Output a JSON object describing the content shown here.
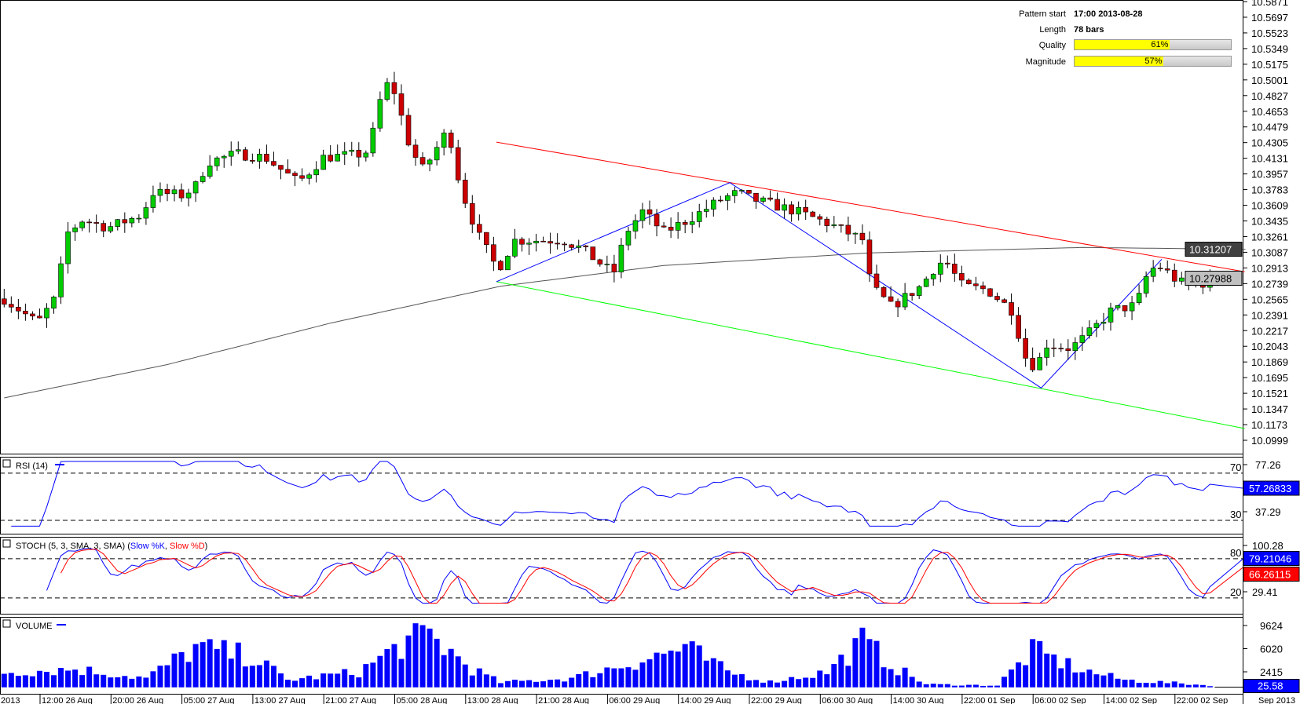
{
  "info": {
    "pattern_start_label": "Pattern start",
    "pattern_start_value": "17:00 2013-08-28",
    "length_label": "Length",
    "length_value": "78 bars",
    "quality_label": "Quality",
    "quality_value": "61%",
    "quality_pct": 61,
    "magnitude_label": "Magnitude",
    "magnitude_value": "57%",
    "magnitude_pct": 57
  },
  "colors": {
    "up": "#00cc00",
    "down": "#cc0000",
    "resistance": "#ff0000",
    "support": "#00ff00",
    "pattern": "#0000ff",
    "ma": "#555555",
    "volume": "#0000ff"
  },
  "chart_data": {
    "type": "candlestick",
    "bars": 175,
    "price_ticks": [
      "10.5871",
      "10.5697",
      "10.5523",
      "10.5349",
      "10.5175",
      "10.5001",
      "10.4827",
      "10.4653",
      "10.4479",
      "10.4305",
      "10.4131",
      "10.3957",
      "10.3783",
      "10.3609",
      "10.3435",
      "10.3261",
      "10.3087",
      "10.2913",
      "10.2739",
      "10.2565",
      "10.2391",
      "10.2217",
      "10.2043",
      "10.1869",
      "10.1695",
      "10.1521",
      "10.1347",
      "10.1173",
      "10.0999"
    ],
    "price_range": [
      10.0999,
      10.5871
    ],
    "close_anchors": [
      [
        0,
        10.257
      ],
      [
        4.7,
        10.23
      ],
      [
        7.6,
        10.262
      ],
      [
        8.5,
        10.327
      ],
      [
        11.1,
        10.345
      ],
      [
        14.6,
        10.336
      ],
      [
        19.3,
        10.35
      ],
      [
        21,
        10.375
      ],
      [
        25.1,
        10.372
      ],
      [
        26.9,
        10.381
      ],
      [
        28.7,
        10.409
      ],
      [
        32.7,
        10.418
      ],
      [
        36.8,
        10.414
      ],
      [
        41.5,
        10.386
      ],
      [
        45,
        10.414
      ],
      [
        50.9,
        10.418
      ],
      [
        52.6,
        10.455
      ],
      [
        53.4,
        10.499
      ],
      [
        55,
        10.487
      ],
      [
        57.3,
        10.423
      ],
      [
        59.1,
        10.4
      ],
      [
        62.6,
        10.446
      ],
      [
        64.3,
        10.381
      ],
      [
        66.7,
        10.33
      ],
      [
        69.6,
        10.289
      ],
      [
        71.9,
        10.322
      ],
      [
        78.9,
        10.322
      ],
      [
        81.3,
        10.313
      ],
      [
        85.9,
        10.285
      ],
      [
        87.7,
        10.331
      ],
      [
        90,
        10.354
      ],
      [
        93,
        10.331
      ],
      [
        96.5,
        10.345
      ],
      [
        101.2,
        10.368
      ],
      [
        103.5,
        10.375
      ],
      [
        105.3,
        10.368
      ],
      [
        111.7,
        10.354
      ],
      [
        116.4,
        10.34
      ],
      [
        121.1,
        10.322
      ],
      [
        122.2,
        10.271
      ],
      [
        125.1,
        10.248
      ],
      [
        129.2,
        10.271
      ],
      [
        131.6,
        10.296
      ],
      [
        132.7,
        10.299
      ],
      [
        135.1,
        10.271
      ],
      [
        138.6,
        10.267
      ],
      [
        142.1,
        10.244
      ],
      [
        143.9,
        10.193
      ],
      [
        145.6,
        10.179
      ],
      [
        146.6,
        10.207
      ],
      [
        150.3,
        10.202
      ],
      [
        152.6,
        10.216
      ],
      [
        156.1,
        10.244
      ],
      [
        159.6,
        10.25
      ],
      [
        161.4,
        10.29
      ],
      [
        163.2,
        10.292
      ],
      [
        165.5,
        10.276
      ],
      [
        167.9,
        10.271
      ],
      [
        170.8,
        10.27988
      ]
    ],
    "moving_average": [
      [
        0,
        10.147
      ],
      [
        23,
        10.184
      ],
      [
        46,
        10.23
      ],
      [
        70,
        10.271
      ],
      [
        93,
        10.294
      ],
      [
        122,
        10.308
      ],
      [
        152,
        10.314
      ],
      [
        175,
        10.31207
      ]
    ],
    "resistance_line": [
      [
        69.4,
        10.431
      ],
      [
        174.9,
        10.287
      ]
    ],
    "support_line": [
      [
        69.4,
        10.276
      ],
      [
        174.9,
        10.113
      ]
    ],
    "pattern_zigzag": [
      [
        69.4,
        10.276
      ],
      [
        102.3,
        10.386
      ],
      [
        146.2,
        10.158
      ],
      [
        163.2,
        10.301
      ]
    ],
    "current_ma_label": "10.31207",
    "current_price_label": "10.27988",
    "rsi": {
      "title": "RSI (14)",
      "ticks": [
        "77.26",
        "37.29"
      ],
      "levels": [
        "70",
        "30"
      ],
      "current": "57.26833"
    },
    "stoch": {
      "title": "STOCH (5, 3, SMA, 3, SMA)",
      "k_label": "Slow %K",
      "d_label": "Slow %D",
      "ticks": [
        "100.28",
        "29.41"
      ],
      "levels": [
        "80",
        "20"
      ],
      "k_current": "79.21046",
      "d_current": "66.26115"
    },
    "volume": {
      "title": "VOLUME",
      "ticks": [
        "9624",
        "6020",
        "2415"
      ],
      "current": "25.58",
      "profile": [
        [
          0,
          2500
        ],
        [
          10,
          3000
        ],
        [
          20,
          1500
        ],
        [
          27,
          6500
        ],
        [
          35,
          5000
        ],
        [
          40,
          1200
        ],
        [
          50,
          2500
        ],
        [
          56,
          7000
        ],
        [
          60,
          8500
        ],
        [
          66,
          3000
        ],
        [
          70,
          800
        ],
        [
          80,
          1500
        ],
        [
          90,
          4500
        ],
        [
          96,
          6500
        ],
        [
          102,
          2500
        ],
        [
          108,
          900
        ],
        [
          116,
          2500
        ],
        [
          121,
          7500
        ],
        [
          126,
          3000
        ],
        [
          130,
          500
        ],
        [
          140,
          300
        ],
        [
          145,
          6000
        ],
        [
          152,
          2800
        ],
        [
          158,
          1200
        ],
        [
          165,
          700
        ],
        [
          170,
          300
        ]
      ]
    },
    "x_labels": [
      "2013",
      "12:00 26 Aug",
      "20:00 26 Aug",
      "05:00 27 Aug",
      "13:00 27 Aug",
      "21:00 27 Aug",
      "05:00 28 Aug",
      "13:00 28 Aug",
      "21:00 28 Aug",
      "06:00 29 Aug",
      "14:00 29 Aug",
      "22:00 29 Aug",
      "06:00 30 Aug",
      "14:00 30 Aug",
      "22:00 01 Sep",
      "06:00 02 Sep",
      "14:00 02 Sep",
      "22:00 02 Sep",
      "Sep 2013"
    ]
  }
}
